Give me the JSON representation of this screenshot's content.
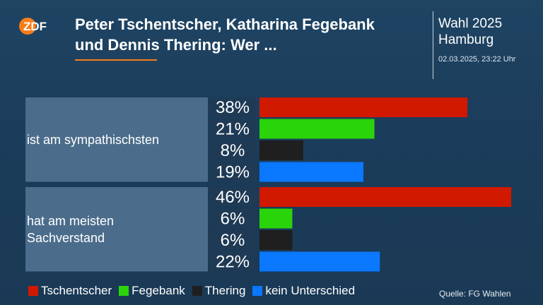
{
  "header": {
    "logo_text": "ZDF",
    "headline_lines": [
      "Peter Tschentscher, Katharina Fegebank",
      "und Dennis Thering: Wer ..."
    ],
    "event_lines": [
      "Wahl 2025",
      "Hamburg"
    ],
    "timestamp": "02.03.2025, 23:22 Uhr"
  },
  "colors": {
    "background": "#1c3d5a",
    "accent": "#fa7d19",
    "tschentscher": "#d11900",
    "fegebank": "#2ad40a",
    "thering": "#1f1f1f",
    "kein_unterschied": "#0a78ff"
  },
  "chart_data": {
    "type": "bar",
    "orientation": "horizontal",
    "title": "",
    "xlabel": "",
    "ylabel": "",
    "xlim": [
      0,
      50
    ],
    "grid": false,
    "legend_position": "bottom",
    "value_suffix": "%",
    "groups": [
      {
        "label_lines": [
          "ist am sympathischsten"
        ],
        "values": [
          38,
          21,
          8,
          19
        ]
      },
      {
        "label_lines": [
          "hat am meisten",
          "Sachverstand"
        ],
        "values": [
          46,
          6,
          6,
          22
        ]
      }
    ],
    "series": [
      {
        "name": "Tschentscher",
        "color": "#d11900"
      },
      {
        "name": "Fegebank",
        "color": "#2ad40a"
      },
      {
        "name": "Thering",
        "color": "#1f1f1f"
      },
      {
        "name": "kein Unterschied",
        "color": "#0a78ff"
      }
    ]
  },
  "footer": {
    "source": "Quelle: FG Wahlen"
  }
}
